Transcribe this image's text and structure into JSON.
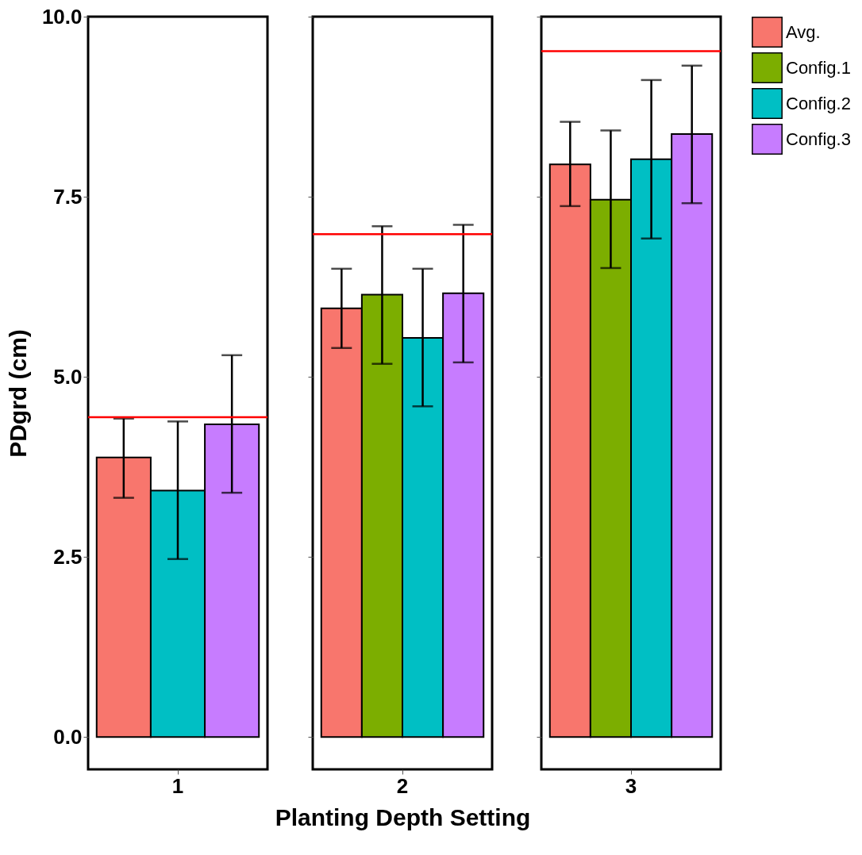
{
  "chart_data": [
    {
      "type": "bar",
      "ylabel": "PDgrd (cm)",
      "categories": [
        "1"
      ],
      "ylim": [
        -0.45,
        10
      ],
      "yticks": [
        {
          "value": 0,
          "label": "0.0"
        },
        2.5,
        {
          "value": 5,
          "label": "5.0"
        },
        7.5,
        {
          "value": 10,
          "label": "10.0"
        }
      ],
      "grid": false,
      "legend": "right",
      "ref_lines": [
        {
          "axis": "y",
          "value": 4.44,
          "color": "#ff0000"
        }
      ],
      "series": [
        {
          "name": "Avg.",
          "color": "#f8766d",
          "values": [
            3.88
          ],
          "errors": [
            [
              3.32,
              4.42
            ]
          ]
        },
        {
          "name": "Config.2",
          "color": "#00bfc4",
          "values": [
            3.42
          ],
          "errors": [
            [
              2.47,
              4.38
            ]
          ]
        },
        {
          "name": "Config.3",
          "color": "#c77cff",
          "values": [
            4.34
          ],
          "errors": [
            [
              3.39,
              5.3
            ]
          ]
        }
      ]
    },
    {
      "type": "bar",
      "xlabel": "Planting Depth Setting",
      "categories": [
        "2"
      ],
      "ylim": [
        -0.45,
        10
      ],
      "yticks": [
        {
          "value": 0,
          "label": null
        },
        {
          "value": 2.5,
          "label": null
        },
        {
          "value": 5,
          "label": null
        },
        {
          "value": 7.5,
          "label": null
        },
        {
          "value": 10,
          "label": null
        }
      ],
      "tick_labels": "x",
      "grid": false,
      "legend": "right",
      "ref_lines": [
        {
          "axis": "y",
          "value": 6.98,
          "color": "#ff0000"
        }
      ],
      "series": [
        {
          "name": "Avg.",
          "color": "#f8766d",
          "values": [
            5.95
          ],
          "errors": [
            [
              5.4,
              6.5
            ]
          ]
        },
        {
          "name": "Config.1",
          "color": "#7cae00",
          "values": [
            6.14
          ],
          "errors": [
            [
              5.18,
              7.09
            ]
          ]
        },
        {
          "name": "Config.2",
          "color": "#00bfc4",
          "values": [
            5.54
          ],
          "errors": [
            [
              4.59,
              6.5
            ]
          ]
        },
        {
          "name": "Config.3",
          "color": "#c77cff",
          "values": [
            6.16
          ],
          "errors": [
            [
              5.2,
              7.11
            ]
          ]
        }
      ]
    },
    {
      "type": "bar",
      "categories": [
        "3"
      ],
      "ylim": [
        -0.45,
        10
      ],
      "yticks": [
        {
          "value": 0,
          "label": null
        },
        {
          "value": 2.5,
          "label": null
        },
        {
          "value": 5,
          "label": null
        },
        {
          "value": 7.5,
          "label": null
        },
        {
          "value": 10,
          "label": null
        }
      ],
      "tick_labels": "x",
      "grid": false,
      "legend": "right",
      "ref_lines": [
        {
          "axis": "y",
          "value": 9.52,
          "color": "#ff0000"
        }
      ],
      "series": [
        {
          "name": "Avg.",
          "color": "#f8766d",
          "values": [
            7.95
          ],
          "errors": [
            [
              7.37,
              8.54
            ]
          ]
        },
        {
          "name": "Config.1",
          "color": "#7cae00",
          "values": [
            7.46
          ],
          "errors": [
            [
              6.51,
              8.42
            ]
          ]
        },
        {
          "name": "Config.2",
          "color": "#00bfc4",
          "values": [
            8.02
          ],
          "errors": [
            [
              6.92,
              9.12
            ]
          ]
        },
        {
          "name": "Config.3",
          "color": "#c77cff",
          "values": [
            8.37
          ],
          "errors": [
            [
              7.41,
              9.32
            ]
          ]
        }
      ]
    }
  ]
}
